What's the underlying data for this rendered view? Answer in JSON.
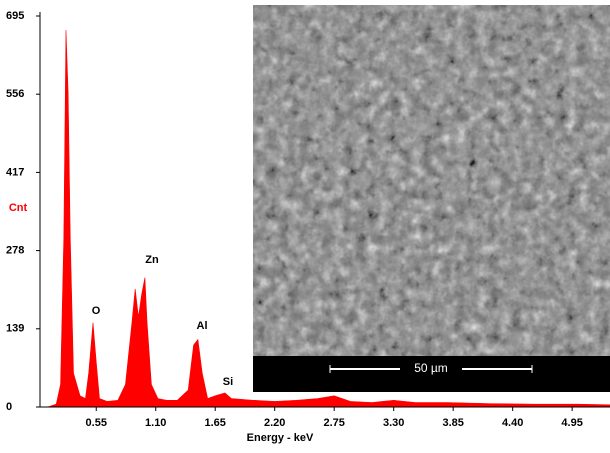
{
  "chart_data": {
    "type": "area",
    "x_label": "Energy - keV",
    "y_label": "Cnt",
    "color": "#ff0000",
    "xlim": [
      0.03,
      5.3
    ],
    "ylim": [
      0,
      695
    ],
    "xticks": [
      0.55,
      {
        "value": 1.1,
        "label": "1.10"
      },
      1.65,
      {
        "value": 2.2,
        "label": "2.20"
      },
      2.75,
      {
        "value": 3.3,
        "label": "3.30"
      },
      3.85,
      {
        "value": 4.4,
        "label": "4.40"
      },
      4.95
    ],
    "yticks": [
      0,
      139,
      278,
      417,
      556,
      695
    ],
    "x": [
      0.1,
      0.18,
      0.22,
      0.25,
      0.27,
      0.29,
      0.31,
      0.34,
      0.4,
      0.45,
      0.48,
      0.52,
      0.55,
      0.58,
      0.65,
      0.75,
      0.82,
      0.88,
      0.91,
      0.94,
      0.97,
      1.0,
      1.02,
      1.06,
      1.12,
      1.2,
      1.3,
      1.4,
      1.45,
      1.49,
      1.53,
      1.58,
      1.65,
      1.74,
      1.8,
      2.0,
      2.2,
      2.4,
      2.6,
      2.75,
      2.9,
      3.1,
      3.3,
      3.5,
      3.8,
      4.2,
      4.6,
      5.0,
      5.3
    ],
    "values": [
      0,
      5,
      40,
      300,
      670,
      560,
      300,
      60,
      20,
      15,
      60,
      150,
      80,
      15,
      10,
      12,
      40,
      150,
      210,
      160,
      200,
      230,
      150,
      40,
      15,
      12,
      12,
      30,
      110,
      120,
      60,
      15,
      20,
      25,
      15,
      12,
      10,
      12,
      15,
      20,
      10,
      8,
      12,
      8,
      8,
      6,
      5,
      5,
      4
    ],
    "annotations": [
      "O",
      "Zn",
      "Al",
      "Si"
    ],
    "scale_bar": "50 µm"
  }
}
